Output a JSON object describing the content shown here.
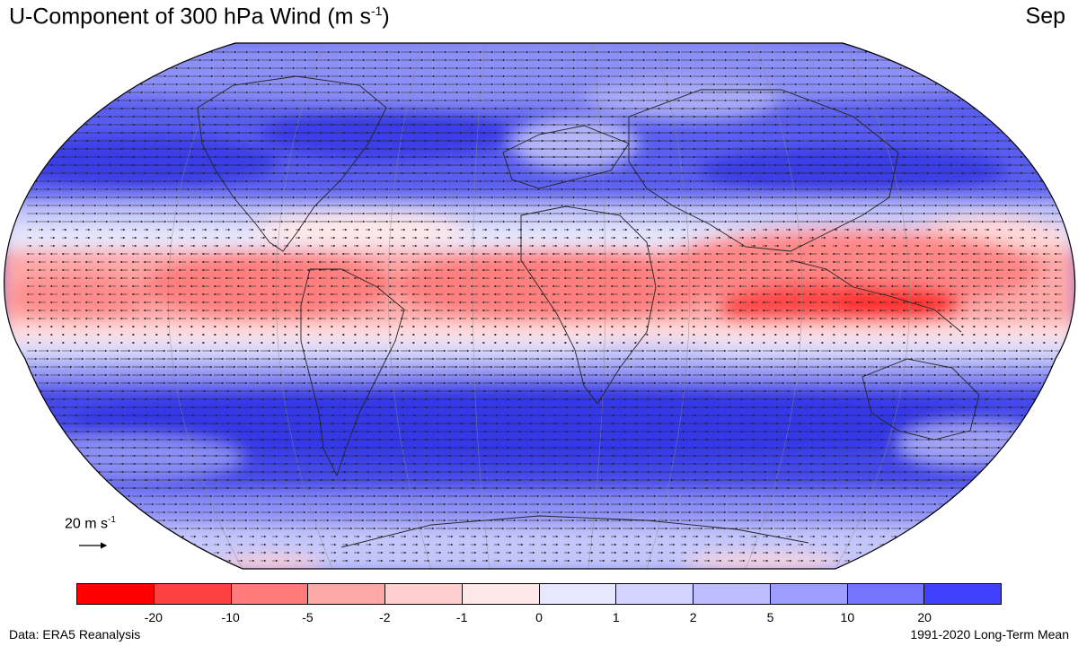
{
  "header": {
    "title_main": "U-Component of 300 hPa Wind (m s",
    "title_exp": "-1",
    "title_close": ")",
    "month": "Sep"
  },
  "reference_vector": {
    "label_main": "20 m s",
    "label_exp": "-1"
  },
  "colorbar": {
    "colors": [
      "#ff0000",
      "#ff4040",
      "#ff7a7a",
      "#ffa8a8",
      "#ffcfcf",
      "#ffe8e8",
      "#e7e7ff",
      "#d3d3ff",
      "#bdbdff",
      "#9d9dff",
      "#7474ff",
      "#4040ff"
    ],
    "ticks": [
      "-20",
      "-10",
      "-5",
      "-2",
      "-1",
      "0",
      "1",
      "2",
      "5",
      "10",
      "20"
    ]
  },
  "footer": {
    "source": "Data: ERA5 Reanalysis",
    "period": "1991-2020 Long-Term Mean"
  }
}
